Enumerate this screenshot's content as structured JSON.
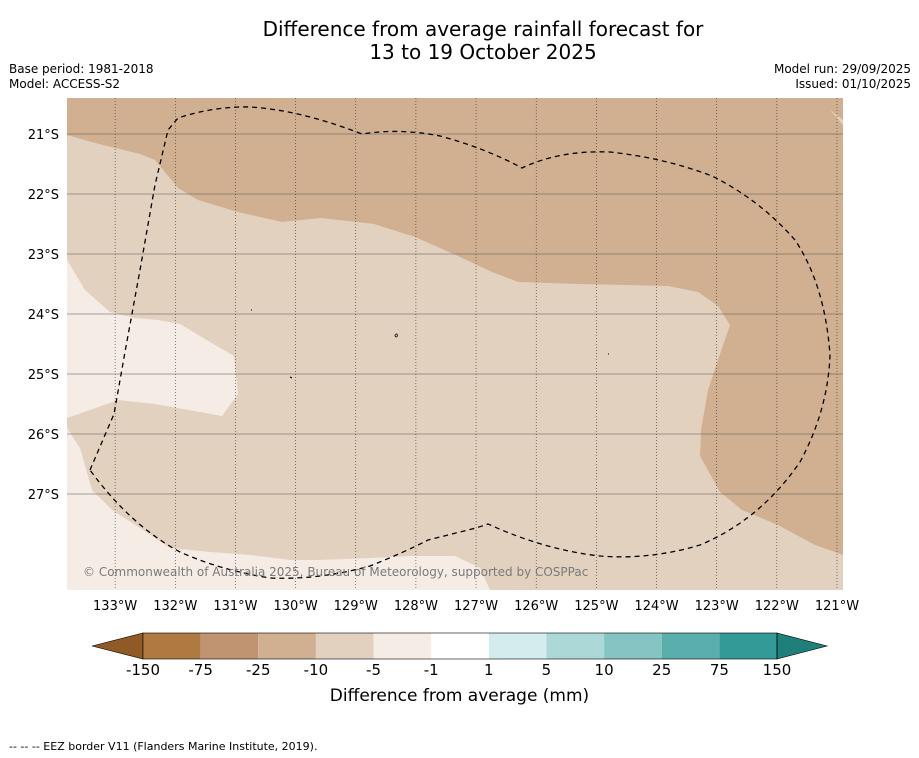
{
  "title_line1": "Difference from average rainfall forecast for",
  "title_line2": "13 to 19 October 2025",
  "base_period": "Base period: 1981-2018",
  "model": "Model: ACCESS-S2",
  "model_run": "Model run: 29/09/2025",
  "issued": "Issued: 01/10/2025",
  "copyright": "© Commonwealth of Australia 2025, Bureau of Meteorology, supported by COSPPac",
  "map": {
    "lon_range": [
      -133.8,
      -120.9
    ],
    "lat_range": [
      -28.6,
      -20.4
    ],
    "lon_ticks": [
      {
        "value": -133,
        "label": "133°W"
      },
      {
        "value": -132,
        "label": "132°W"
      },
      {
        "value": -131,
        "label": "131°W"
      },
      {
        "value": -130,
        "label": "130°W"
      },
      {
        "value": -129,
        "label": "129°W"
      },
      {
        "value": -128,
        "label": "128°W"
      },
      {
        "value": -127,
        "label": "127°W"
      },
      {
        "value": -126,
        "label": "126°W"
      },
      {
        "value": -125,
        "label": "125°W"
      },
      {
        "value": -124,
        "label": "124°W"
      },
      {
        "value": -123,
        "label": "123°W"
      },
      {
        "value": -122,
        "label": "122°W"
      },
      {
        "value": -121,
        "label": "121°W"
      }
    ],
    "lat_ticks": [
      {
        "value": -21,
        "label": "21°S"
      },
      {
        "value": -22,
        "label": "22°S"
      },
      {
        "value": -23,
        "label": "23°S"
      },
      {
        "value": -24,
        "label": "24°S"
      },
      {
        "value": -25,
        "label": "25°S"
      },
      {
        "value": -26,
        "label": "26°S"
      },
      {
        "value": -27,
        "label": "27°S"
      }
    ],
    "zones": [
      {
        "name": "-10 to -5 mm",
        "color": "#e3d1c0"
      },
      {
        "name": "-25 to -10 mm",
        "color": "#d1b092"
      },
      {
        "name": "-5 to -1 mm",
        "color": "#f5ece6"
      }
    ]
  },
  "colorbar": {
    "levels": [
      "-150",
      "-75",
      "-25",
      "-10",
      "-5",
      "-1",
      "1",
      "5",
      "10",
      "25",
      "75",
      "150"
    ],
    "colors": [
      "#ae7a42",
      "#c09470",
      "#d1b092",
      "#e3d1c0",
      "#f5ece6",
      "#ffffff",
      "#d4ecec",
      "#acd8d8",
      "#84c4c2",
      "#5aaeab",
      "#349a97"
    ],
    "under_color": "#8f5a26",
    "over_color": "#1f7f7b",
    "title": "Difference from average (mm)"
  },
  "footnote": "-- -- -- EEZ border V11 (Flanders Marine Institute, 2019)."
}
